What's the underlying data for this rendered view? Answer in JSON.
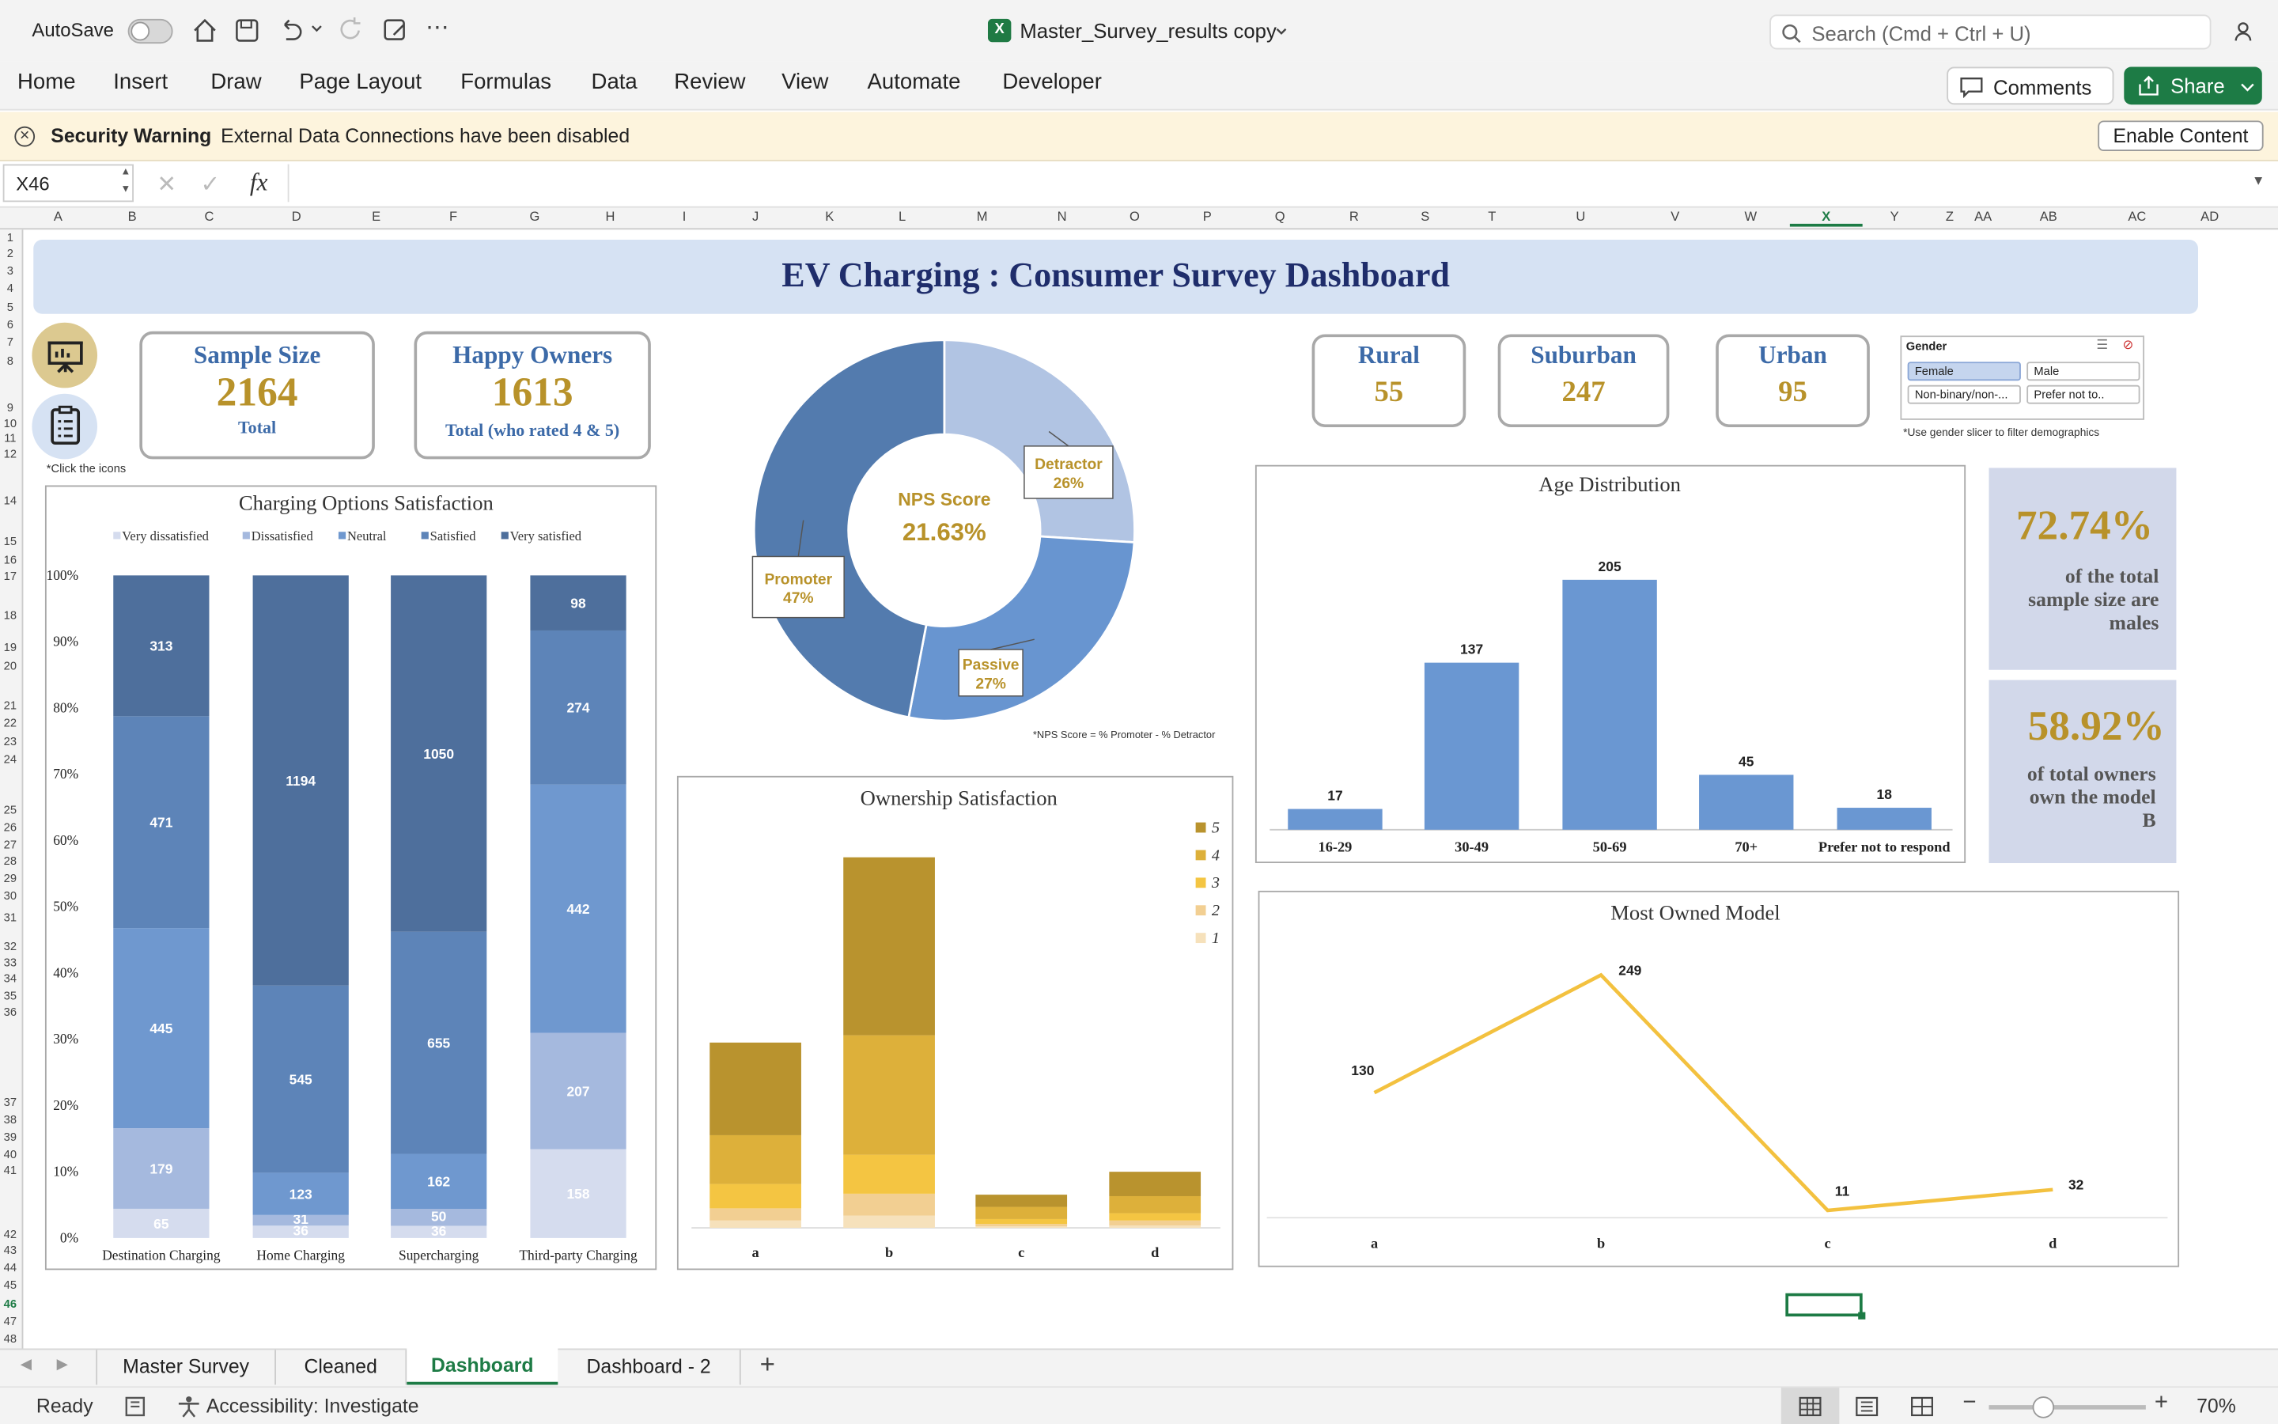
{
  "window": {
    "autosave_label": "AutoSave",
    "file_name": "Master_Survey_results copy",
    "search_placeholder": "Search (Cmd + Ctrl + U)"
  },
  "ribbon": {
    "tabs": [
      "Home",
      "Insert",
      "Draw",
      "Page Layout",
      "Formulas",
      "Data",
      "Review",
      "View",
      "Automate",
      "Developer"
    ],
    "comments_label": "Comments",
    "share_label": "Share"
  },
  "security": {
    "title": "Security Warning",
    "message": "External Data Connections have been disabled",
    "button": "Enable Content"
  },
  "formula_bar": {
    "name_box": "X46",
    "fx_label": "fx",
    "formula": ""
  },
  "grid": {
    "columns": [
      "A",
      "B",
      "C",
      "D",
      "E",
      "F",
      "G",
      "H",
      "I",
      "J",
      "K",
      "L",
      "M",
      "N",
      "O",
      "P",
      "Q",
      "R",
      "S",
      "T",
      "U",
      "V",
      "W",
      "X",
      "Y",
      "Z",
      "AA",
      "AB",
      "AC",
      "AD"
    ],
    "rows": [
      "1",
      "2",
      "3",
      "4",
      "5",
      "6",
      "7",
      "8",
      "9",
      "10",
      "11",
      "12",
      "14",
      "15",
      "16",
      "17",
      "18",
      "19",
      "20",
      "21",
      "22",
      "23",
      "24",
      "25",
      "26",
      "27",
      "28",
      "29",
      "30",
      "31",
      "32",
      "33",
      "34",
      "35",
      "36",
      "37",
      "38",
      "39",
      "40",
      "41",
      "42",
      "43",
      "44",
      "45",
      "46",
      "47",
      "48"
    ],
    "selected_column": "X",
    "selected_row": "46"
  },
  "dashboard": {
    "title": "EV Charging : Consumer Survey Dashboard",
    "click_note": "*Click the icons",
    "sample_size": {
      "title": "Sample Size",
      "value": "2164",
      "caption": "Total"
    },
    "happy_owners": {
      "title": "Happy Owners",
      "value": "1613",
      "caption": "Total (who rated 4 & 5)"
    },
    "rural": {
      "title": "Rural",
      "value": "55"
    },
    "suburban": {
      "title": "Suburban",
      "value": "247"
    },
    "urban": {
      "title": "Urban",
      "value": "95"
    },
    "slicer": {
      "title": "Gender",
      "items": [
        "Female",
        "Male",
        "Non-binary/non-...",
        "Prefer not to.."
      ],
      "selected": "Female",
      "note": "*Use gender slicer to filter demographics"
    },
    "stat_males": {
      "value": "72.74%",
      "text": "of the total sample size are males"
    },
    "stat_model_b": {
      "value": "58.92%",
      "text": "of total owners own the model B"
    },
    "nps_note": "*NPS Score = % Promoter - % Detractor",
    "colors": {
      "accent_gold": "#b8922a",
      "title_navy": "#1f2d6b",
      "card_blue": "#3c6aa8",
      "banner": "#d6e2f3",
      "stat_bg": "#d2d8ea"
    }
  },
  "chart_data": [
    {
      "type": "bar",
      "stacked": "percent",
      "title": "Charging Options Satisfaction",
      "categories": [
        "Destination Charging",
        "Home Charging",
        "Supercharging",
        "Third-party Charging"
      ],
      "series": [
        {
          "name": "Very dissatisfied",
          "values": [
            65,
            36,
            36,
            158
          ]
        },
        {
          "name": "Dissatisfied",
          "values": [
            179,
            31,
            50,
            207
          ]
        },
        {
          "name": "Neutral",
          "values": [
            445,
            123,
            162,
            442
          ]
        },
        {
          "name": "Satisfied",
          "values": [
            471,
            545,
            655,
            274
          ]
        },
        {
          "name": "Very satisfied",
          "values": [
            313,
            1194,
            1050,
            98
          ]
        }
      ],
      "yticks": [
        "0%",
        "10%",
        "20%",
        "30%",
        "40%",
        "50%",
        "60%",
        "70%",
        "80%",
        "90%",
        "100%"
      ],
      "legend": "top",
      "colors": [
        "#d5dcee",
        "#a5b9de",
        "#6f98cf",
        "#5d84b8",
        "#4e6f9c"
      ]
    },
    {
      "type": "pie",
      "donut": true,
      "center_title": "NPS Score",
      "center_value": "21.63%",
      "slices": [
        {
          "name": "Detractor",
          "value": 26,
          "label": "26%"
        },
        {
          "name": "Passive",
          "value": 27,
          "label": "27%"
        },
        {
          "name": "Promoter",
          "value": 47,
          "label": "47%"
        }
      ],
      "colors": [
        "#b1c4e3",
        "#6895d0",
        "#537bae"
      ]
    },
    {
      "type": "bar",
      "title": "Age Distribution",
      "categories": [
        "16-29",
        "30-49",
        "50-69",
        "70+",
        "Prefer not to respond"
      ],
      "values": [
        17,
        137,
        205,
        45,
        18
      ],
      "ylim": [
        0,
        210
      ]
    },
    {
      "type": "bar",
      "stacked": true,
      "title": "Ownership Satisfaction",
      "categories": [
        "a",
        "b",
        "c",
        "d"
      ],
      "series": [
        {
          "name": "1",
          "values": [
            3,
            5,
            0.6,
            1
          ]
        },
        {
          "name": "2",
          "values": [
            5,
            9,
            1,
            2
          ]
        },
        {
          "name": "3",
          "values": [
            10,
            16,
            2,
            3
          ]
        },
        {
          "name": "4",
          "values": [
            20,
            49,
            5,
            7
          ]
        },
        {
          "name": "5",
          "values": [
            38,
            73,
            5,
            10
          ]
        }
      ],
      "legend": "right",
      "colors": [
        "#f6e1bb",
        "#f2cf92",
        "#f4c542",
        "#ddb03a",
        "#b9932e"
      ]
    },
    {
      "type": "line",
      "title": "Most Owned Model",
      "categories": [
        "a",
        "b",
        "c",
        "d"
      ],
      "values": [
        130,
        249,
        11,
        32
      ],
      "color": "#f3c13f"
    }
  ],
  "sheets": {
    "tabs": [
      "Master Survey",
      "Cleaned",
      "Dashboard",
      "Dashboard - 2"
    ],
    "active": "Dashboard"
  },
  "status": {
    "ready": "Ready",
    "accessibility": "Accessibility: Investigate",
    "zoom": "70%"
  }
}
